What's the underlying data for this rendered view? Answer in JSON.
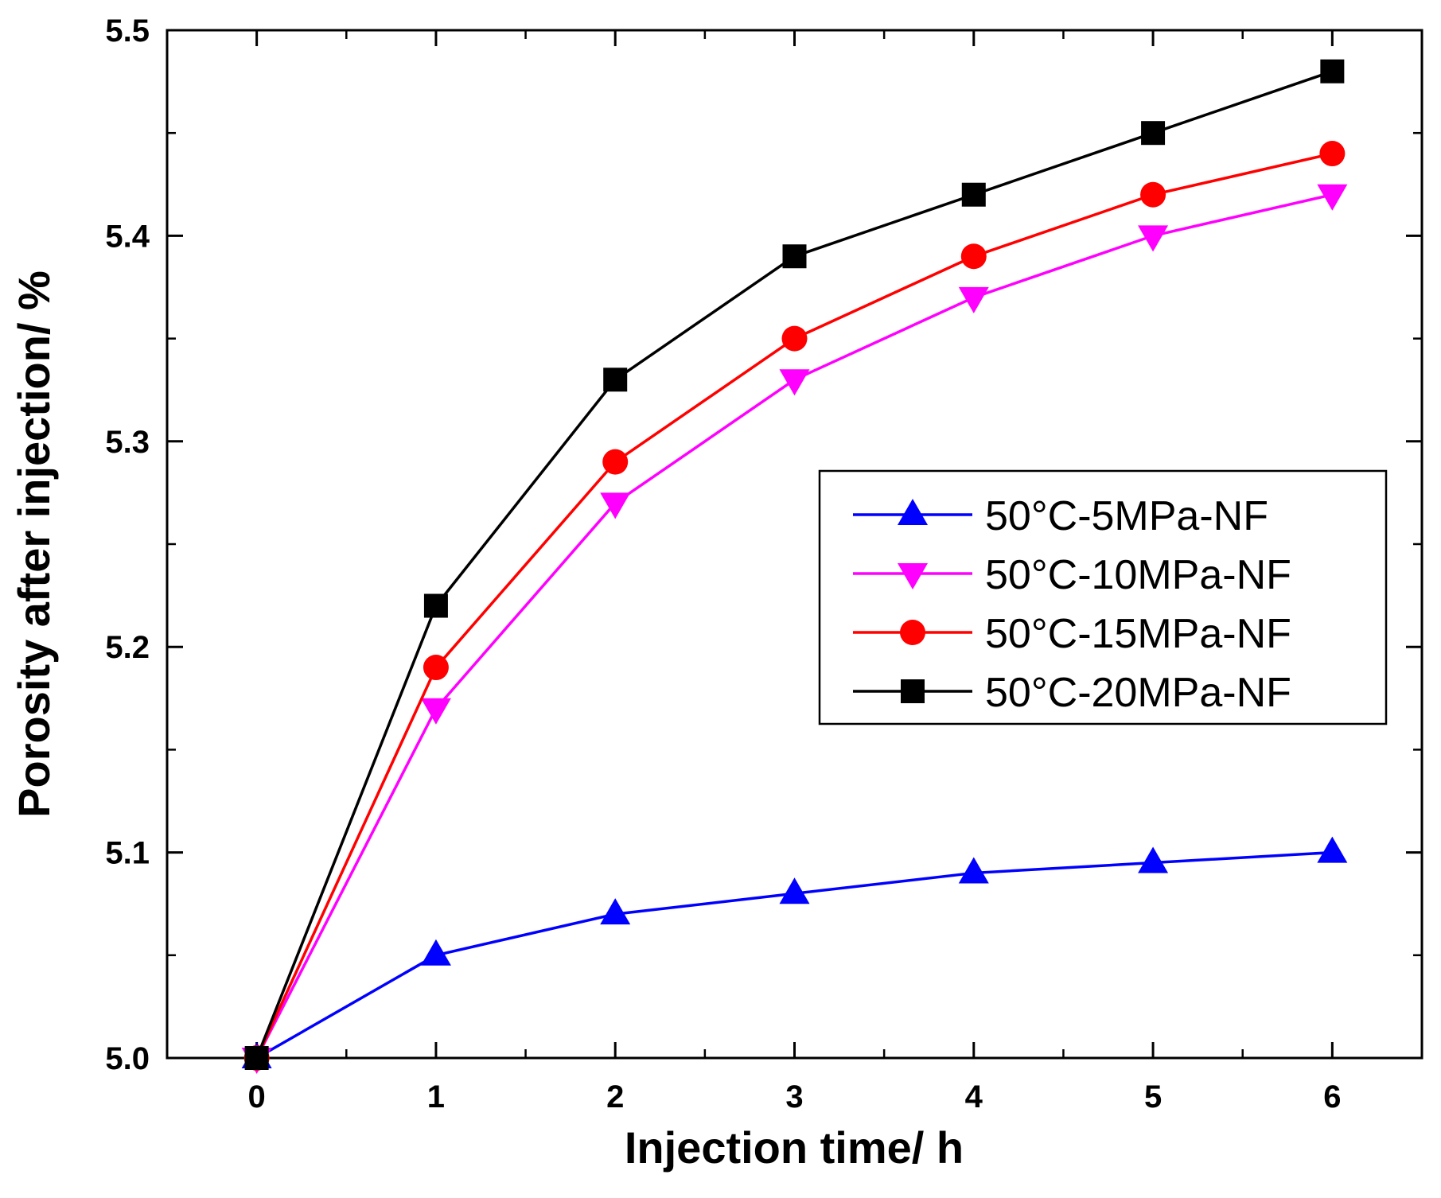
{
  "chart_data": {
    "type": "line",
    "xlabel": "Injection time/ h",
    "ylabel": "Porosity after injection/ %",
    "xlim": [
      -0.5,
      6.5
    ],
    "ylim": [
      5.0,
      5.5
    ],
    "x_ticks": [
      "0",
      "1",
      "2",
      "3",
      "4",
      "5",
      "6"
    ],
    "y_ticks": [
      "5.0",
      "5.1",
      "5.2",
      "5.3",
      "5.4",
      "5.5"
    ],
    "x": [
      0,
      1,
      2,
      3,
      4,
      5,
      6
    ],
    "grid": false,
    "legend_position": "center-right",
    "series": [
      {
        "name": "50°C-5MPa-NF",
        "marker": "triangle-up",
        "color": "#0000ff",
        "values": [
          5.0,
          5.05,
          5.07,
          5.08,
          5.09,
          5.095,
          5.1
        ]
      },
      {
        "name": "50°C-10MPa-NF",
        "marker": "triangle-down",
        "color": "#ff00ff",
        "values": [
          5.0,
          5.17,
          5.27,
          5.33,
          5.37,
          5.4,
          5.42
        ]
      },
      {
        "name": "50°C-15MPa-NF",
        "marker": "circle",
        "color": "#ff0000",
        "values": [
          5.0,
          5.19,
          5.29,
          5.35,
          5.39,
          5.42,
          5.44
        ]
      },
      {
        "name": "50°C-20MPa-NF",
        "marker": "square",
        "color": "#000000",
        "values": [
          5.0,
          5.22,
          5.33,
          5.39,
          5.42,
          5.45,
          5.48
        ]
      }
    ]
  }
}
